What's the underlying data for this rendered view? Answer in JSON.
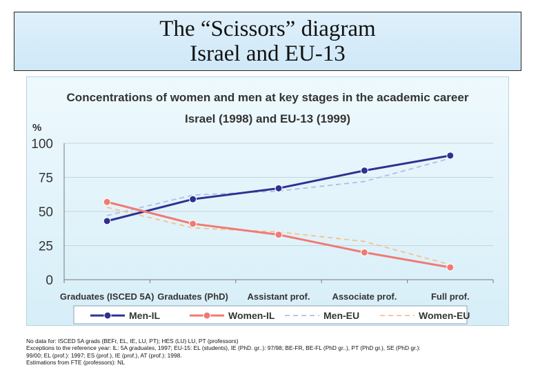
{
  "header": {
    "title_line1": "The “Scissors” diagram",
    "title_line2": "Israel and EU-13"
  },
  "chart_data": {
    "type": "line",
    "title_line1": "Concentrations of women and men at key stages in the academic career",
    "title_line2": "Israel (1998) and EU-13 (1999)",
    "ylabel": "%",
    "xlabel": "",
    "ylim": [
      0,
      100
    ],
    "yticks": [
      0,
      25,
      50,
      75,
      100
    ],
    "grid": true,
    "legend_position": "bottom",
    "categories": [
      "Graduates (ISCED 5A)",
      "Graduates (PhD)",
      "Assistant prof.",
      "Associate prof.",
      "Full prof."
    ],
    "series": [
      {
        "name": "Men-IL",
        "values": [
          43,
          59,
          67,
          80,
          91
        ],
        "color": "#2e3192",
        "style": "solid",
        "marker": true
      },
      {
        "name": "Women-IL",
        "values": [
          57,
          41,
          33,
          20,
          9
        ],
        "color": "#f07a73",
        "style": "solid",
        "marker": true
      },
      {
        "name": "Men-EU",
        "values": [
          47,
          62,
          65,
          72,
          89
        ],
        "color": "#aebde6",
        "style": "dashed",
        "marker": false
      },
      {
        "name": "Women-EU",
        "values": [
          53,
          38,
          35,
          28,
          11
        ],
        "color": "#f7c08a",
        "style": "dashed",
        "marker": false
      }
    ]
  },
  "notes": [
    "No data for: ISCED 5A grads (BEFr, EL, IE, LU, PT); HES (LU) LU, PT (professors)",
    "Exceptions to the reference year: IL: 5A graduates, 1997; EU-15: EL (students), IE (PhD. gr..): 97/98; BE-FR, BE-FL (PhD gr..),  PT (PhD gr.), SE (PhD gr.):",
    " 99/00; EL (prof.): 1997; ES (prof.), IE (prof.), AT (prof.): 1998.",
    " Estimations from FTE (professors): NL"
  ]
}
